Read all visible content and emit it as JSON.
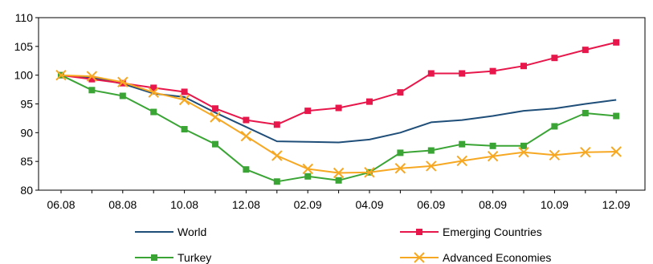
{
  "chart_data": {
    "type": "line",
    "title": "",
    "xlabel": "",
    "ylabel": "",
    "ylim": [
      80,
      110
    ],
    "yticks": [
      80,
      85,
      90,
      95,
      100,
      105,
      110
    ],
    "grid": false,
    "legend_placement": "bottom",
    "x_tick_labels": [
      "06.08",
      "08.08",
      "10.08",
      "12.08",
      "02.09",
      "04.09",
      "06.09",
      "08.09",
      "10.09",
      "12.09"
    ],
    "series": [
      {
        "name": "World",
        "color": "#1f4e79",
        "marker": "none",
        "values": [
          100,
          99.6,
          98.5,
          96.8,
          96.2,
          93.5,
          91,
          88.5,
          88.4,
          88.3,
          88.8,
          90,
          91.8,
          92.2,
          92.9,
          93.8,
          94.2,
          95,
          95.7
        ]
      },
      {
        "name": "Emerging Countries",
        "color": "#e8174b",
        "marker": "square",
        "values": [
          100,
          99.3,
          98.6,
          97.8,
          97.1,
          94.2,
          92.2,
          91.4,
          93.8,
          94.3,
          95.4,
          97,
          100.3,
          100.3,
          100.7,
          101.6,
          103,
          104.4,
          105.7
        ]
      },
      {
        "name": "Turkey",
        "color": "#3aa535",
        "marker": "square",
        "values": [
          100,
          97.4,
          96.4,
          93.6,
          90.6,
          88,
          83.6,
          81.5,
          82.4,
          81.7,
          83.1,
          86.5,
          86.9,
          88,
          87.7,
          87.7,
          91.1,
          93.4,
          92.9
        ]
      },
      {
        "name": "Advanced Economies",
        "color": "#f7a823",
        "marker": "x",
        "values": [
          100,
          99.8,
          98.8,
          97,
          95.7,
          92.7,
          89.4,
          86,
          83.7,
          83,
          83.1,
          83.8,
          84.2,
          85.1,
          85.9,
          86.6,
          86.1,
          86.6,
          86.7
        ]
      }
    ]
  }
}
